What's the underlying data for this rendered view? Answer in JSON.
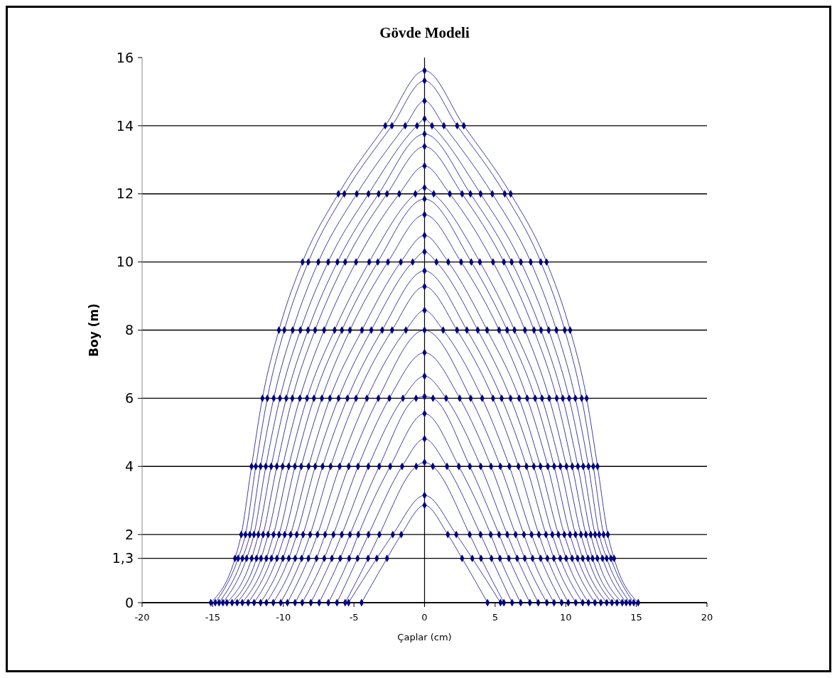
{
  "chart_data": {
    "type": "line",
    "title": "Gövde Modeli",
    "xlabel": "Çaplar (cm)",
    "ylabel": "Boy (m)",
    "xlim": [
      -20,
      20
    ],
    "xticks": [
      -20,
      -15,
      -10,
      -5,
      0,
      5,
      10,
      15,
      20
    ],
    "ylim": [
      0,
      16
    ],
    "yticks": [
      0,
      {
        "value": 1.3,
        "label": "1,3"
      },
      2,
      4,
      6,
      8,
      10,
      12,
      14,
      16
    ],
    "grid": "y",
    "marker": "diamond",
    "line_style": "solid",
    "series": [
      {
        "color": "#000080",
        "x": [
          -4.46,
          -2.66,
          -1.65,
          0,
          1.65,
          2.66,
          4.46
        ],
        "values": [
          0,
          1.3,
          2,
          2.86,
          2,
          1.3,
          0
        ]
      },
      {
        "color": "#000080",
        "x": [
          -5.38,
          -3.38,
          -2.25,
          0,
          2.25,
          3.38,
          5.38
        ],
        "values": [
          0,
          1.3,
          2,
          3.15,
          2,
          1.3,
          0
        ]
      },
      {
        "color": "#000080",
        "x": [
          -5.62,
          -4.0,
          -3.2,
          -0.59,
          0,
          0.59,
          3.2,
          4.0,
          5.62
        ],
        "values": [
          0,
          1.3,
          2,
          4,
          4.12,
          4,
          2,
          1.3,
          0
        ]
      },
      {
        "color": "#000080",
        "x": [
          -6.2,
          -4.74,
          -3.97,
          -1.59,
          0,
          1.59,
          3.97,
          4.74,
          6.2
        ],
        "values": [
          0,
          1.3,
          2,
          4,
          4.81,
          4,
          2,
          1.3,
          0
        ]
      },
      {
        "color": "#000080",
        "x": [
          -6.81,
          -5.34,
          -4.69,
          -2.43,
          0,
          2.43,
          4.69,
          5.34,
          6.81
        ],
        "values": [
          0,
          1.3,
          2,
          4,
          5.55,
          4,
          2,
          1.3,
          0
        ]
      },
      {
        "color": "#000080",
        "x": [
          -7.46,
          -5.97,
          -5.28,
          -3.21,
          -0.6,
          0,
          0.6,
          3.21,
          5.28,
          5.97,
          7.46
        ],
        "values": [
          0,
          1.3,
          2,
          4,
          6,
          6.05,
          6,
          4,
          2,
          1.3,
          0
        ]
      },
      {
        "color": "#000080",
        "x": [
          -8.05,
          -6.56,
          -5.86,
          -3.98,
          -1.53,
          0,
          1.53,
          3.98,
          5.86,
          6.56,
          8.05
        ],
        "values": [
          0,
          1.3,
          2,
          4,
          6,
          6.65,
          6,
          4,
          2,
          1.3,
          0
        ]
      },
      {
        "color": "#000080",
        "x": [
          -8.66,
          -7.1,
          -6.45,
          -4.71,
          -2.49,
          0,
          2.49,
          4.71,
          6.45,
          7.1,
          8.66
        ],
        "values": [
          0,
          1.3,
          2,
          4,
          6,
          7.34,
          6,
          4,
          2,
          1.3,
          0
        ]
      },
      {
        "color": "#000080",
        "x": [
          -9.17,
          -7.65,
          -7.04,
          -5.37,
          -3.27,
          0,
          3.27,
          5.37,
          7.04,
          7.65,
          9.17
        ],
        "values": [
          0,
          1.3,
          2,
          4,
          6,
          8.0,
          6,
          4,
          2,
          1.3,
          0
        ]
      },
      {
        "color": "#000080",
        "x": [
          -9.71,
          -8.22,
          -7.58,
          -6.01,
          -4.08,
          -1.32,
          0,
          1.32,
          4.08,
          6.01,
          7.58,
          8.22,
          9.71
        ],
        "values": [
          0,
          1.3,
          2,
          4,
          6,
          8,
          8.58,
          8,
          6,
          4,
          2,
          1.3,
          0
        ]
      },
      {
        "color": "#000080",
        "x": [
          -10.18,
          -8.7,
          -8.1,
          -6.65,
          -4.85,
          -2.3,
          0,
          2.3,
          4.85,
          6.65,
          8.1,
          8.7,
          10.18
        ],
        "values": [
          0,
          1.3,
          2,
          4,
          6,
          8,
          9.28,
          8,
          6,
          4,
          2,
          1.3,
          0
        ]
      },
      {
        "color": "#000080",
        "x": [
          -10.71,
          -9.16,
          -8.6,
          -7.22,
          -5.46,
          -3.0,
          0,
          3.0,
          5.46,
          7.22,
          8.6,
          9.16,
          10.71
        ],
        "values": [
          0,
          1.3,
          2,
          4,
          6,
          8,
          9.74,
          8,
          6,
          4,
          2,
          1.3,
          0
        ]
      },
      {
        "color": "#000080",
        "x": [
          -11.2,
          -9.61,
          -9.05,
          -7.74,
          -6.09,
          -3.77,
          -0.84,
          0,
          0.84,
          3.77,
          6.09,
          7.74,
          9.05,
          9.61,
          11.2
        ],
        "values": [
          0,
          1.3,
          2,
          4,
          6,
          8,
          10,
          10.3,
          10,
          8,
          6,
          4,
          2,
          1.3,
          0
        ]
      },
      {
        "color": "#000080",
        "x": [
          -11.61,
          -10.03,
          -9.48,
          -8.21,
          -6.7,
          -4.43,
          -1.68,
          0,
          1.68,
          4.43,
          6.7,
          8.21,
          9.48,
          10.03,
          11.61
        ],
        "values": [
          0,
          1.3,
          2,
          4,
          6,
          8,
          10,
          10.78,
          10,
          8,
          6,
          4,
          2,
          1.3,
          0
        ]
      },
      {
        "color": "#000080",
        "x": [
          -12.07,
          -10.45,
          -9.9,
          -8.73,
          -7.27,
          -5.28,
          -2.59,
          0,
          2.59,
          5.28,
          7.27,
          8.73,
          9.9,
          10.45,
          12.07
        ],
        "values": [
          0,
          1.3,
          2,
          4,
          6,
          8,
          10,
          11.39,
          10,
          8,
          6,
          4,
          2,
          1.3,
          0
        ]
      },
      {
        "color": "#000080",
        "x": [
          -12.49,
          -10.84,
          -10.3,
          -9.18,
          -7.83,
          -5.85,
          -3.31,
          0,
          3.31,
          5.85,
          7.83,
          9.18,
          10.3,
          10.84,
          12.49
        ],
        "values": [
          0,
          1.3,
          2,
          4,
          6,
          8,
          10,
          11.85,
          10,
          8,
          6,
          4,
          2,
          1.3,
          0
        ]
      },
      {
        "color": "#000080",
        "x": [
          -12.9,
          -11.2,
          -10.69,
          -9.62,
          -8.32,
          -6.37,
          -3.92,
          -0.65,
          0,
          0.65,
          3.92,
          6.37,
          8.32,
          9.62,
          10.69,
          11.2,
          12.9
        ],
        "values": [
          0,
          1.3,
          2,
          4,
          6,
          8,
          10,
          12,
          12.18,
          12,
          10,
          8,
          6,
          4,
          2,
          1.3,
          0
        ]
      },
      {
        "color": "#000080",
        "x": [
          -13.27,
          -11.58,
          -11.08,
          -10.05,
          -8.83,
          -7.11,
          -4.85,
          -1.79,
          0,
          1.79,
          4.85,
          7.11,
          8.83,
          10.05,
          11.08,
          11.58,
          13.27
        ],
        "values": [
          0,
          1.3,
          2,
          4,
          6,
          8,
          10,
          12,
          12.82,
          12,
          10,
          8,
          6,
          4,
          2,
          1.3,
          0
        ]
      },
      {
        "color": "#000080",
        "x": [
          -13.63,
          -11.9,
          -11.43,
          -10.46,
          -9.36,
          -7.75,
          -5.62,
          -2.66,
          0,
          2.66,
          5.62,
          7.75,
          9.36,
          10.46,
          11.43,
          11.9,
          13.63
        ],
        "values": [
          0,
          1.3,
          2,
          4,
          6,
          8,
          10,
          12,
          13.39,
          12,
          10,
          8,
          6,
          4,
          2,
          1.3,
          0
        ]
      },
      {
        "color": "#000080",
        "x": [
          -14.0,
          -12.24,
          -11.77,
          -10.86,
          -9.79,
          -8.25,
          -6.17,
          -3.25,
          0,
          3.25,
          6.17,
          8.25,
          9.79,
          10.86,
          11.77,
          12.24,
          14.0
        ],
        "values": [
          0,
          1.3,
          2,
          4,
          6,
          8,
          10,
          12,
          13.76,
          12,
          10,
          8,
          6,
          4,
          2,
          1.3,
          0
        ]
      },
      {
        "color": "#000080",
        "x": [
          -14.28,
          -12.6,
          -12.08,
          -11.24,
          -10.24,
          -8.79,
          -6.82,
          -3.97,
          -0.53,
          0,
          0.53,
          3.97,
          6.82,
          8.79,
          10.24,
          11.24,
          12.08,
          12.6,
          14.28
        ],
        "values": [
          0,
          1.3,
          2,
          4,
          6,
          8,
          10,
          12,
          14,
          14.2,
          14,
          12,
          10,
          8,
          6,
          4,
          2,
          1.3,
          0
        ]
      },
      {
        "color": "#000080",
        "x": [
          -14.55,
          -12.9,
          -12.37,
          -11.61,
          -10.68,
          -9.34,
          -7.52,
          -4.8,
          -1.37,
          0,
          1.37,
          4.8,
          7.52,
          9.34,
          10.68,
          11.61,
          12.37,
          12.9,
          14.55
        ],
        "values": [
          0,
          1.3,
          2,
          4,
          6,
          8,
          10,
          12,
          14,
          14.73,
          14,
          12,
          10,
          8,
          6,
          4,
          2,
          1.3,
          0
        ]
      },
      {
        "color": "#000080",
        "x": [
          -14.82,
          -13.2,
          -12.68,
          -11.95,
          -11.13,
          -9.93,
          -8.23,
          -5.68,
          -2.31,
          0,
          2.31,
          5.68,
          8.23,
          9.93,
          11.13,
          11.95,
          12.68,
          13.2,
          14.82
        ],
        "values": [
          0,
          1.3,
          2,
          4,
          6,
          8,
          10,
          12,
          14,
          15.32,
          14,
          12,
          10,
          8,
          6,
          4,
          2,
          1.3,
          0
        ]
      },
      {
        "color": "#000080",
        "x": [
          -15.13,
          -13.42,
          -12.98,
          -12.25,
          -11.48,
          -10.31,
          -8.64,
          -6.1,
          -2.78,
          0,
          2.78,
          6.1,
          8.64,
          10.31,
          11.48,
          12.25,
          12.98,
          13.42,
          15.13
        ],
        "values": [
          0,
          1.3,
          2,
          4,
          6,
          8,
          10,
          12,
          14,
          15.62,
          14,
          12,
          10,
          8,
          6,
          4,
          2,
          1.3,
          0
        ]
      }
    ]
  }
}
